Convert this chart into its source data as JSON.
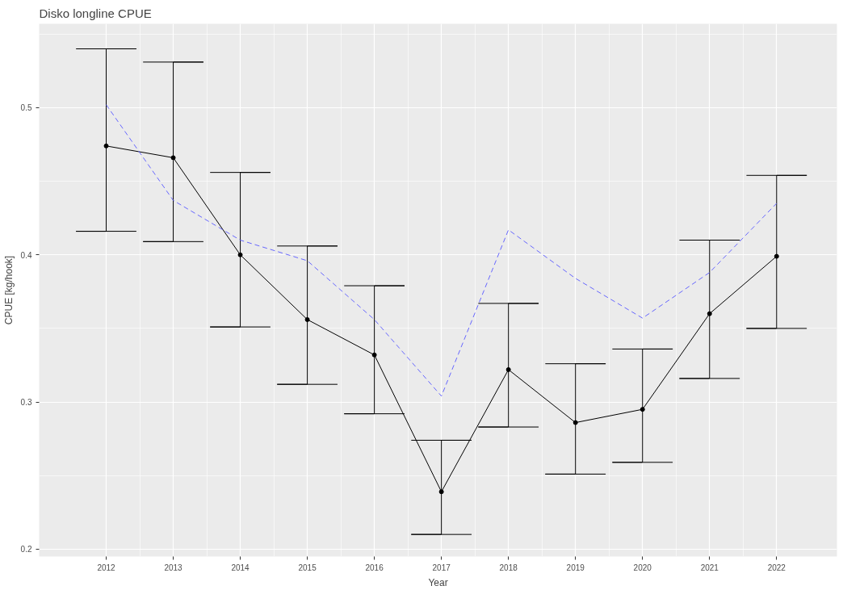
{
  "chart_data": {
    "type": "line",
    "title": "Disko longline CPUE",
    "xlabel": "Year",
    "ylabel": "CPUE [kg/hook]",
    "x": [
      2012,
      2013,
      2014,
      2015,
      2016,
      2017,
      2018,
      2019,
      2020,
      2021,
      2022
    ],
    "series": [
      {
        "color": "#000000",
        "marker": "circle",
        "line_style": "solid",
        "values": [
          0.474,
          0.466,
          0.4,
          0.356,
          0.332,
          0.239,
          0.322,
          0.286,
          0.295,
          0.36,
          0.399
        ],
        "errors": [
          [
            0.416,
            0.54
          ],
          [
            0.409,
            0.531
          ],
          [
            0.351,
            0.456
          ],
          [
            0.312,
            0.406
          ],
          [
            0.292,
            0.379
          ],
          [
            0.21,
            0.274
          ],
          [
            0.283,
            0.367
          ],
          [
            0.251,
            0.326
          ],
          [
            0.259,
            0.336
          ],
          [
            0.316,
            0.41
          ],
          [
            0.35,
            0.454
          ]
        ]
      },
      {
        "color": "#6666ff",
        "marker": "none",
        "line_style": "dashed",
        "values": [
          0.502,
          0.437,
          0.41,
          0.396,
          0.356,
          0.304,
          0.417,
          0.384,
          0.357,
          0.388,
          0.435
        ]
      }
    ],
    "xlim": [
      2011.0,
      2022.9
    ],
    "ylim": [
      0.195,
      0.557
    ],
    "xticks": [
      2012,
      2013,
      2014,
      2015,
      2016,
      2017,
      2018,
      2019,
      2020,
      2021,
      2022
    ],
    "yticks": [
      0.2,
      0.3,
      0.4,
      0.5
    ],
    "grid": true
  }
}
